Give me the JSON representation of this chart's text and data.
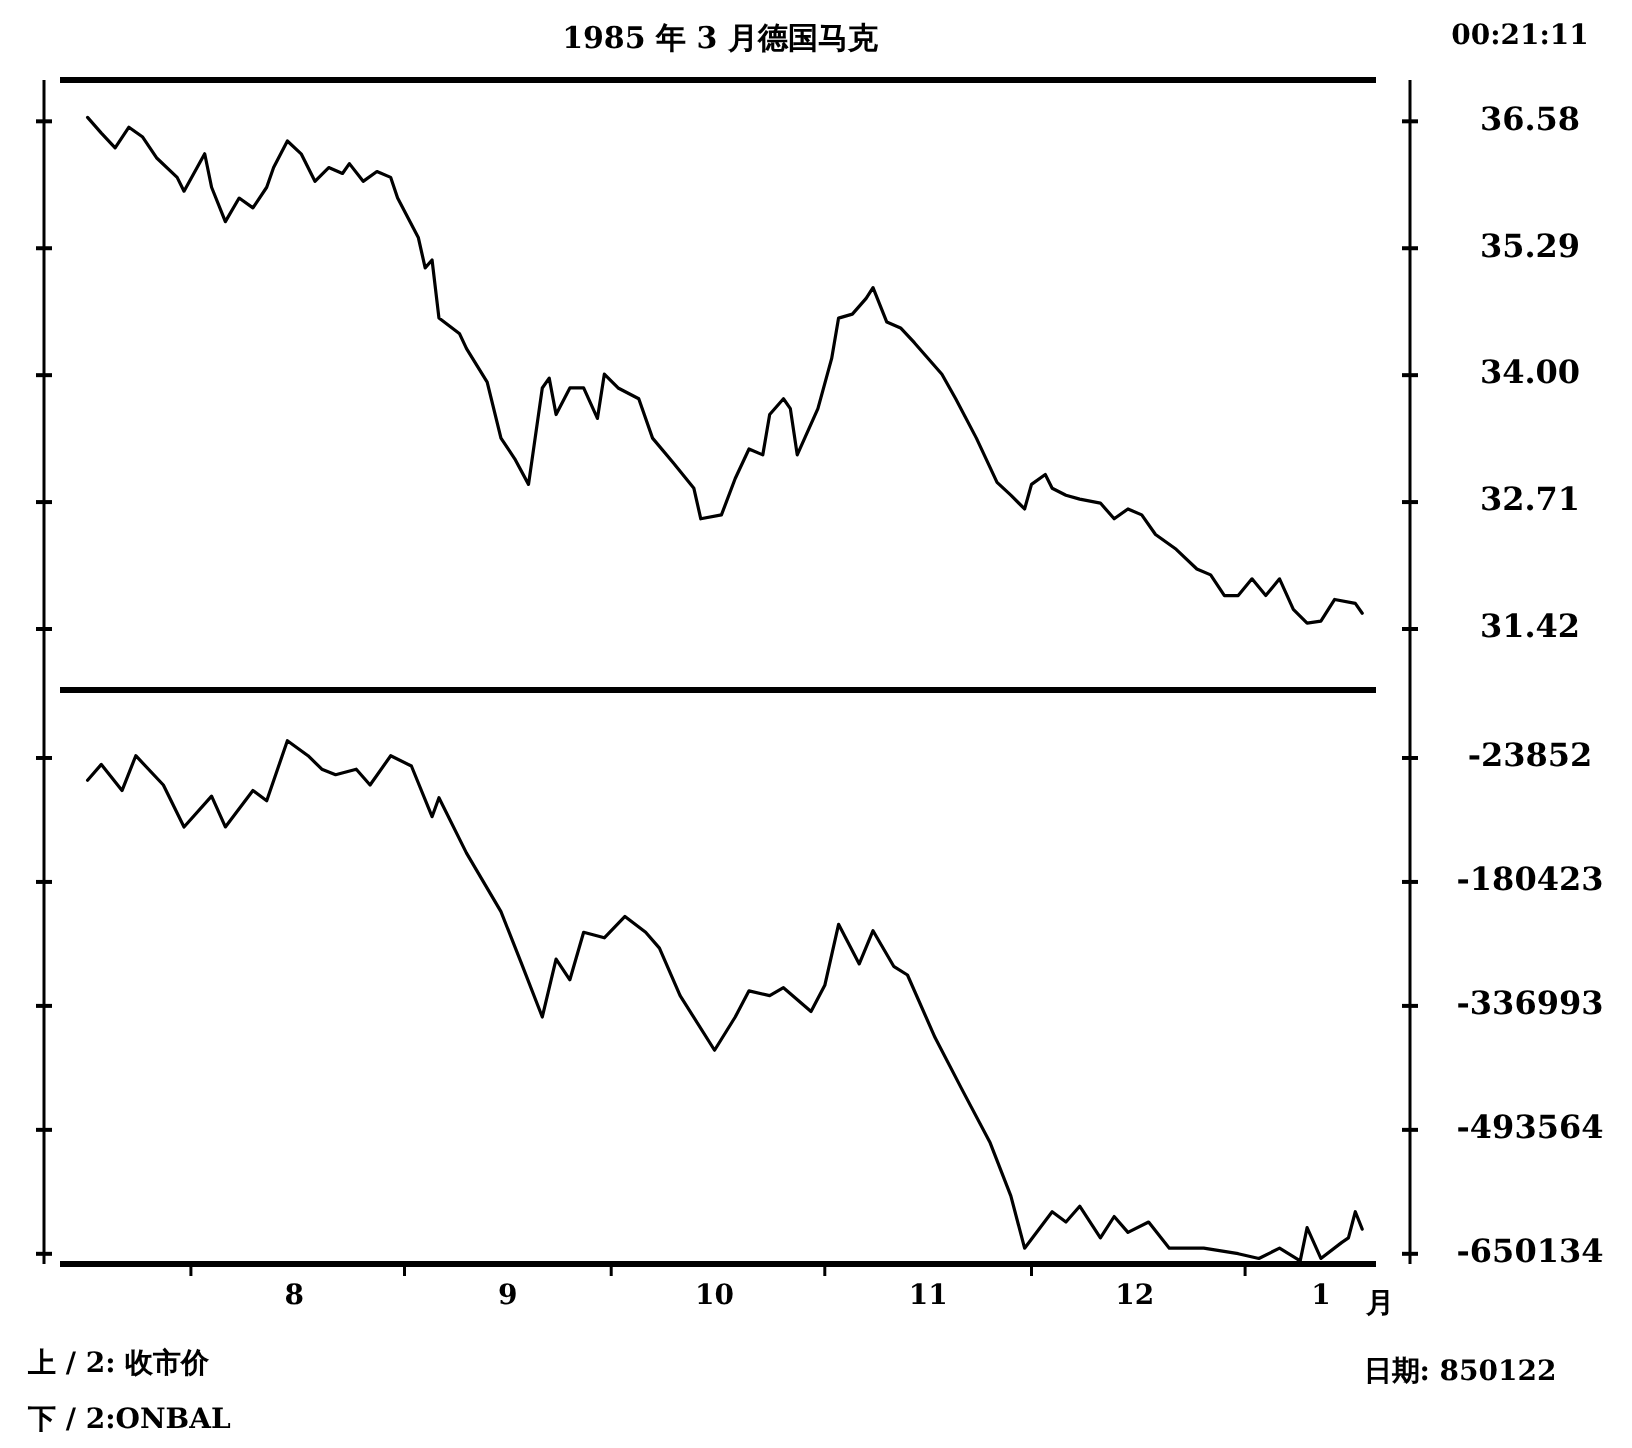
{
  "chart_data": [
    {
      "type": "line",
      "title": "1985 年 3 月德国马克",
      "annotations": [
        "00:21:11"
      ],
      "tick_labels": "y",
      "xlim": [
        "1984-07-13",
        "1985-01-20"
      ],
      "ylim": [
        30.8,
        37.0
      ],
      "yticks": [
        31.42,
        32.71,
        {
          "value": 34,
          "label": "34.00"
        },
        35.29,
        36.58
      ],
      "series": [
        {
          "color": "#000000",
          "x": [
            "1984-07-17",
            "1984-07-19",
            "1984-07-21",
            "1984-07-23",
            "1984-07-25",
            "1984-07-27",
            "1984-07-30",
            "1984-07-31",
            "1984-08-03",
            "1984-08-04",
            "1984-08-06",
            "1984-08-08",
            "1984-08-10",
            "1984-08-12",
            "1984-08-13",
            "1984-08-15",
            "1984-08-17",
            "1984-08-19",
            "1984-08-21",
            "1984-08-23",
            "1984-08-24",
            "1984-08-26",
            "1984-08-28",
            "1984-08-30",
            "1984-08-31",
            "1984-09-03",
            "1984-09-04",
            "1984-09-05",
            "1984-09-06",
            "1984-09-09",
            "1984-09-10",
            "1984-09-13",
            "1984-09-15",
            "1984-09-17",
            "1984-09-19",
            "1984-09-21",
            "1984-09-22",
            "1984-09-23",
            "1984-09-25",
            "1984-09-27",
            "1984-09-29",
            "1984-09-30",
            "1984-10-02",
            "1984-10-05",
            "1984-10-07",
            "1984-10-10",
            "1984-10-13",
            "1984-10-14",
            "1984-10-17",
            "1984-10-19",
            "1984-10-21",
            "1984-10-23",
            "1984-10-24",
            "1984-10-26",
            "1984-10-27",
            "1984-10-28",
            "1984-10-31",
            "1984-11-02",
            "1984-11-03",
            "1984-11-05",
            "1984-11-07",
            "1984-11-08",
            "1984-11-10",
            "1984-11-12",
            "1984-11-14",
            "1984-11-16",
            "1984-11-18",
            "1984-11-20",
            "1984-11-23",
            "1984-11-26",
            "1984-11-28",
            "1984-11-30",
            "1984-12-01",
            "1984-12-03",
            "1984-12-04",
            "1984-12-06",
            "1984-12-08",
            "1984-12-11",
            "1984-12-13",
            "1984-12-15",
            "1984-12-17",
            "1984-12-19",
            "1984-12-22",
            "1984-12-25",
            "1984-12-27",
            "1984-12-29",
            "1984-12-31",
            "1985-01-02",
            "1985-01-04",
            "1985-01-06",
            "1985-01-08",
            "1985-01-10",
            "1985-01-12",
            "1985-01-14",
            "1985-01-17",
            "1985-01-18"
          ],
          "values": [
            36.62,
            36.46,
            36.31,
            36.52,
            36.42,
            36.21,
            36.01,
            35.87,
            36.25,
            35.91,
            35.56,
            35.8,
            35.7,
            35.91,
            36.11,
            36.38,
            36.25,
            35.97,
            36.11,
            36.05,
            36.15,
            35.97,
            36.07,
            36.01,
            35.8,
            35.4,
            35.09,
            35.17,
            34.58,
            34.42,
            34.27,
            33.93,
            33.36,
            33.15,
            32.89,
            33.87,
            33.97,
            33.6,
            33.87,
            33.87,
            33.56,
            34.01,
            33.87,
            33.76,
            33.36,
            33.11,
            32.85,
            32.54,
            32.58,
            32.95,
            33.25,
            33.19,
            33.6,
            33.76,
            33.66,
            33.19,
            33.66,
            34.17,
            34.58,
            34.62,
            34.78,
            34.89,
            34.54,
            34.48,
            34.33,
            34.17,
            34.01,
            33.76,
            33.36,
            32.91,
            32.78,
            32.64,
            32.89,
            32.99,
            32.85,
            32.78,
            32.74,
            32.7,
            32.54,
            32.64,
            32.58,
            32.38,
            32.23,
            32.03,
            31.97,
            31.76,
            31.76,
            31.93,
            31.76,
            31.93,
            31.62,
            31.48,
            31.5,
            31.72,
            31.68,
            31.58
          ]
        }
      ]
    },
    {
      "type": "line",
      "xlabel": "月",
      "annotations": [
        "上 / 2: 收市价",
        "下 / 2:ONBAL",
        "日期: 850122"
      ],
      "xlim": [
        "1984-07-13",
        "1985-01-20"
      ],
      "ylim": [
        -663000,
        62000
      ],
      "xticks": [
        {
          "value": "1984-08-01",
          "label": null
        },
        {
          "value": "1984-09-01",
          "label": null
        },
        {
          "value": "1984-10-01",
          "label": null
        },
        {
          "value": "1984-11-01",
          "label": null
        },
        {
          "value": "1984-12-01",
          "label": null
        },
        {
          "value": "1985-01-01",
          "label": null
        },
        {
          "value": "1984-08-16",
          "label": "8"
        },
        {
          "value": "1984-09-16",
          "label": "9"
        },
        {
          "value": "1984-10-16",
          "label": "10"
        },
        {
          "value": "1984-11-16",
          "label": "11"
        },
        {
          "value": "1984-12-16",
          "label": "12"
        },
        {
          "value": "1985-01-12",
          "label": "1"
        }
      ],
      "yticks": [
        -650134,
        -493564,
        -336993,
        -180423,
        -23852
      ],
      "series": [
        {
          "color": "#000000",
          "x": [
            "1984-07-17",
            "1984-07-19",
            "1984-07-22",
            "1984-07-24",
            "1984-07-28",
            "1984-07-31",
            "1984-08-04",
            "1984-08-06",
            "1984-08-10",
            "1984-08-12",
            "1984-08-15",
            "1984-08-18",
            "1984-08-20",
            "1984-08-22",
            "1984-08-25",
            "1984-08-27",
            "1984-08-30",
            "1984-09-02",
            "1984-09-05",
            "1984-09-06",
            "1984-09-10",
            "1984-09-15",
            "1984-09-18",
            "1984-09-21",
            "1984-09-23",
            "1984-09-25",
            "1984-09-27",
            "1984-09-30",
            "1984-10-03",
            "1984-10-06",
            "1984-10-08",
            "1984-10-11",
            "1984-10-16",
            "1984-10-19",
            "1984-10-21",
            "1984-10-24",
            "1984-10-26",
            "1984-10-30",
            "1984-11-01",
            "1984-11-03",
            "1984-11-06",
            "1984-11-08",
            "1984-11-11",
            "1984-11-13",
            "1984-11-17",
            "1984-11-21",
            "1984-11-25",
            "1984-11-28",
            "1984-11-30",
            "1984-12-04",
            "1984-12-06",
            "1984-12-08",
            "1984-12-11",
            "1984-12-13",
            "1984-12-15",
            "1984-12-18",
            "1984-12-21",
            "1984-12-26",
            "1984-12-31",
            "1985-01-03",
            "1985-01-06",
            "1985-01-09",
            "1985-01-10",
            "1985-01-12",
            "1985-01-15",
            "1985-01-16",
            "1985-01-17",
            "1985-01-18"
          ],
          "values": [
            -52000,
            -32000,
            -65000,
            -21000,
            -58000,
            -111000,
            -72000,
            -111000,
            -65000,
            -78000,
            -2000,
            -21000,
            -38000,
            -45000,
            -38000,
            -58000,
            -21000,
            -34000,
            -98000,
            -74000,
            -144000,
            -218000,
            -284000,
            -351000,
            -278000,
            -304000,
            -244000,
            -251000,
            -224000,
            -244000,
            -264000,
            -324000,
            -393000,
            -351000,
            -318000,
            -324000,
            -314000,
            -344000,
            -311000,
            -234000,
            -284000,
            -242000,
            -287000,
            -298000,
            -377000,
            -444000,
            -510000,
            -577000,
            -643000,
            -597000,
            -610000,
            -590000,
            -630000,
            -603000,
            -623000,
            -610000,
            -643000,
            -643000,
            -650000,
            -656000,
            -643000,
            -659000,
            -617000,
            -656000,
            -636000,
            -630000,
            -597000,
            -619000
          ]
        }
      ]
    }
  ]
}
